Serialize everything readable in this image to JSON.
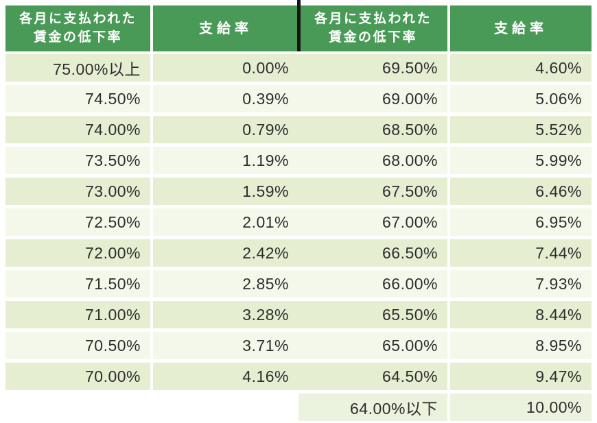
{
  "table": {
    "header": {
      "decline_line1": "各月に支払われた",
      "decline_line2": "賃金の低下率",
      "rate_label": "支給率"
    },
    "rows": [
      {
        "left_decline": "75.00%以上",
        "left_rate": "0.00%",
        "right_decline": "69.50%",
        "right_rate": "4.60%"
      },
      {
        "left_decline": "74.50%",
        "left_rate": "0.39%",
        "right_decline": "69.00%",
        "right_rate": "5.06%"
      },
      {
        "left_decline": "74.00%",
        "left_rate": "0.79%",
        "right_decline": "68.50%",
        "right_rate": "5.52%"
      },
      {
        "left_decline": "73.50%",
        "left_rate": "1.19%",
        "right_decline": "68.00%",
        "right_rate": "5.99%"
      },
      {
        "left_decline": "73.00%",
        "left_rate": "1.59%",
        "right_decline": "67.50%",
        "right_rate": "6.46%"
      },
      {
        "left_decline": "72.50%",
        "left_rate": "2.01%",
        "right_decline": "67.00%",
        "right_rate": "6.95%"
      },
      {
        "left_decline": "72.00%",
        "left_rate": "2.42%",
        "right_decline": "66.50%",
        "right_rate": "7.44%"
      },
      {
        "left_decline": "71.50%",
        "left_rate": "2.85%",
        "right_decline": "66.00%",
        "right_rate": "7.93%"
      },
      {
        "left_decline": "71.00%",
        "left_rate": "3.28%",
        "right_decline": "65.50%",
        "right_rate": "8.44%"
      },
      {
        "left_decline": "70.50%",
        "left_rate": "3.71%",
        "right_decline": "65.00%",
        "right_rate": "8.95%"
      },
      {
        "left_decline": "70.00%",
        "left_rate": "4.16%",
        "right_decline": "64.50%",
        "right_rate": "9.47%"
      },
      {
        "left_decline": "",
        "left_rate": "",
        "right_decline": "64.00%以下",
        "right_rate": "10.00%"
      }
    ]
  },
  "colors": {
    "header_green": "#4a9a57",
    "header_text": "#ffffff",
    "row_green": "#e5eed1",
    "row_light": "#f4f8eb",
    "row_last": "#ebf2dd",
    "divider": "#161616",
    "text": "#2d2d2d"
  }
}
